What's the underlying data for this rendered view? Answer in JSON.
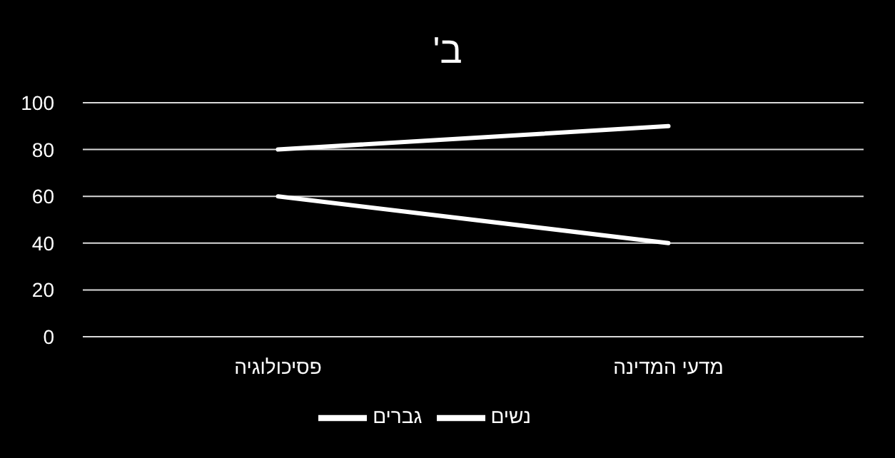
{
  "chart_data": {
    "type": "line",
    "title": "ב'",
    "categories": [
      "פסיכולוגיה",
      "מדעי המדינה"
    ],
    "series": [
      {
        "name": "גברים",
        "color": "#ffffff",
        "values": [
          60,
          40
        ]
      },
      {
        "name": "נשים",
        "color": "#ffffff",
        "values": [
          80,
          90
        ]
      }
    ],
    "ylim": [
      0,
      100
    ],
    "yticks": [
      0,
      20,
      40,
      60,
      80,
      100
    ],
    "grid": "y",
    "legend": "bottom",
    "marker": "none",
    "line_style": "solid"
  }
}
